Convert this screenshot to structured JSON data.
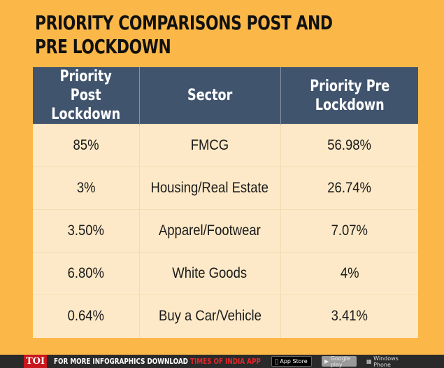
{
  "title": "PRIORITY COMPARISONS POST AND PRE LOCKDOWN",
  "colors": {
    "background": "#fbb848",
    "header": "#41546e",
    "row": "#fde9c7",
    "accent_red": "#e8262b"
  },
  "chart_data": {
    "type": "table",
    "title": "PRIORITY COMPARISONS POST AND PRE LOCKDOWN",
    "columns": [
      "Priority Post Lockdown",
      "Sector",
      "Priority Pre Lockdown"
    ],
    "rows": [
      [
        "85%",
        "FMCG",
        "56.98%"
      ],
      [
        "3%",
        "Housing/Real Estate",
        "26.74%"
      ],
      [
        "3.50%",
        "Apparel/Footwear",
        "7.07%"
      ],
      [
        "6.80%",
        "White Goods",
        "4%"
      ],
      [
        "0.64%",
        "Buy a Car/Vehicle",
        "3.41%"
      ]
    ]
  },
  "footer": {
    "logo": "TOI",
    "text": "FOR MORE  INFOGRAPHICS DOWNLOAD ",
    "app_name": "TIMES OF INDIA  APP",
    "app_store": "App Store",
    "google_play": "Google play",
    "windows_phone": "Windows Phone"
  }
}
